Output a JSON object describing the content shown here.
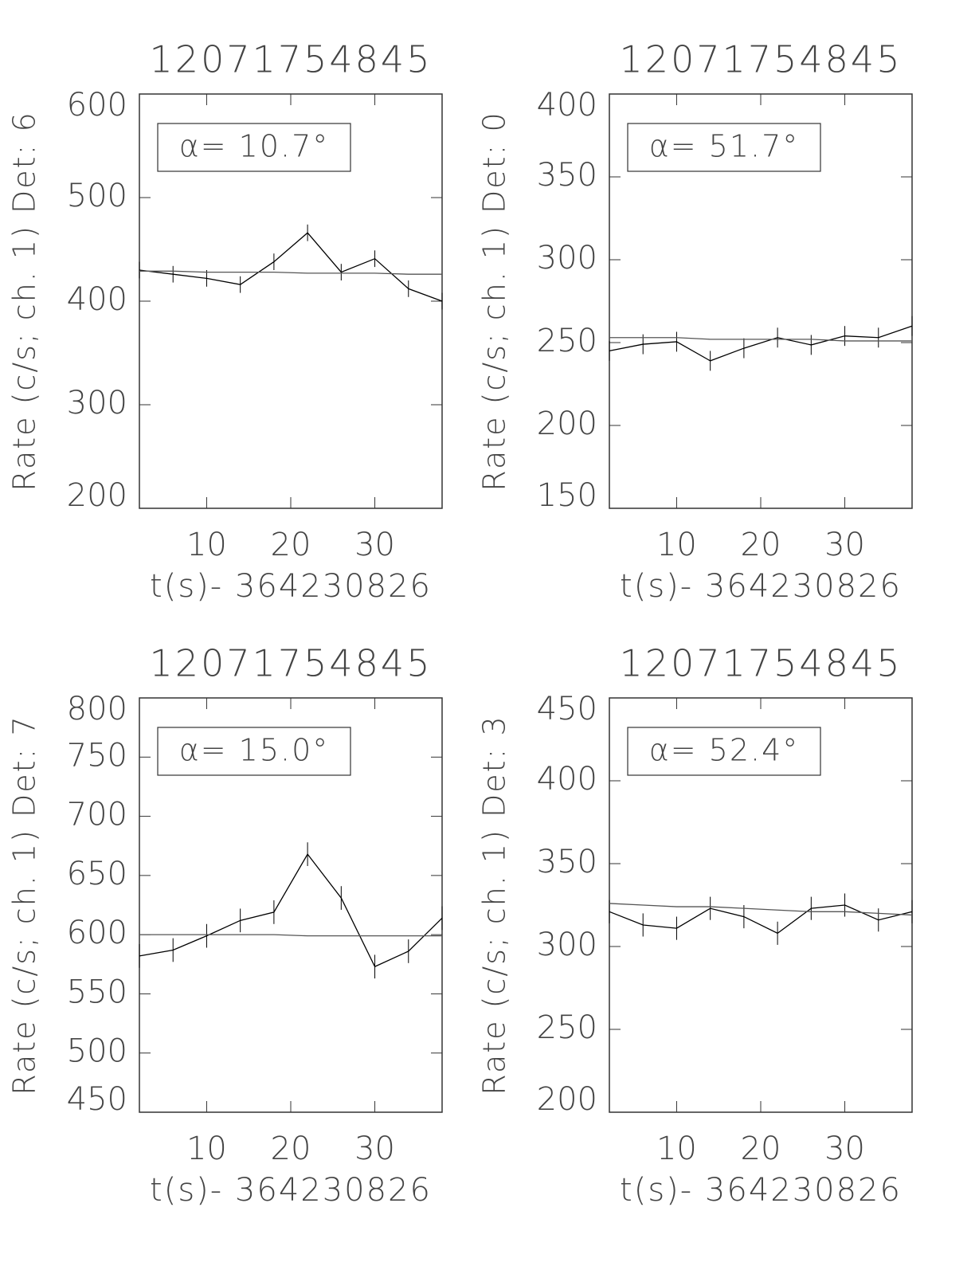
{
  "chart_data": [
    {
      "type": "line",
      "title": "12071754845",
      "xlabel": "t(s)- 364230826",
      "ylabel": "Rate (c/s; ch. 1) Det: 6",
      "annotation": "α= 10.7°",
      "x": [
        2,
        6,
        10,
        14,
        18,
        22,
        26,
        30,
        34,
        38
      ],
      "xlim": [
        2,
        38
      ],
      "xticks": [
        10,
        20,
        30
      ],
      "ylim": [
        200,
        600
      ],
      "yticks": [
        200,
        300,
        400,
        500,
        600
      ],
      "series": [
        {
          "color": "#000000",
          "values": [
            430,
            426,
            422,
            416,
            438,
            466,
            428,
            441,
            412,
            400
          ],
          "errors": [
            8,
            8,
            8,
            8,
            8,
            8,
            8,
            8,
            8,
            8
          ]
        },
        {
          "color": "#555555",
          "values": [
            429,
            429,
            428,
            428,
            428,
            427,
            427,
            427,
            426,
            426
          ]
        }
      ]
    },
    {
      "type": "line",
      "title": "12071754845",
      "xlabel": "t(s)- 364230826",
      "ylabel": "Rate (c/s; ch. 1) Det: 0",
      "annotation": "α= 51.7°",
      "x": [
        2,
        6,
        10,
        14,
        18,
        22,
        26,
        30,
        34,
        38
      ],
      "xlim": [
        2,
        38
      ],
      "xticks": [
        10,
        20,
        30
      ],
      "ylim": [
        150,
        400
      ],
      "yticks": [
        150,
        200,
        250,
        300,
        350,
        400
      ],
      "series": [
        {
          "color": "#000000",
          "values": [
            245,
            249,
            250.5,
            239,
            246.6,
            253,
            248.6,
            254,
            253,
            260
          ],
          "errors": [
            6,
            6,
            6,
            6,
            6,
            6,
            6,
            6,
            6,
            6
          ]
        },
        {
          "color": "#555555",
          "values": [
            253,
            253,
            253,
            252,
            252,
            252,
            252,
            251,
            251,
            251
          ]
        }
      ]
    },
    {
      "type": "line",
      "title": "12071754845",
      "xlabel": "t(s)- 364230826",
      "ylabel": "Rate (c/s; ch. 1) Det: 7",
      "annotation": "α= 15.0°",
      "x": [
        2,
        6,
        10,
        14,
        18,
        22,
        26,
        30,
        34,
        38
      ],
      "xlim": [
        2,
        38
      ],
      "xticks": [
        10,
        20,
        30
      ],
      "ylim": [
        450,
        800
      ],
      "yticks": [
        450,
        500,
        550,
        600,
        650,
        700,
        750,
        800
      ],
      "series": [
        {
          "color": "#000000",
          "values": [
            582,
            587,
            599,
            612,
            619,
            668,
            631,
            573,
            586,
            614
          ],
          "errors": [
            10,
            10,
            10,
            10,
            10,
            10,
            10,
            10,
            10,
            10
          ]
        },
        {
          "color": "#555555",
          "values": [
            600,
            600,
            600,
            600,
            600,
            599,
            599,
            599,
            599,
            599
          ]
        }
      ]
    },
    {
      "type": "line",
      "title": "12071754845",
      "xlabel": "t(s)- 364230826",
      "ylabel": "Rate (c/s; ch. 1) Det: 3",
      "annotation": "α= 52.4°",
      "x": [
        2,
        6,
        10,
        14,
        18,
        22,
        26,
        30,
        34,
        38
      ],
      "xlim": [
        2,
        38
      ],
      "xticks": [
        10,
        20,
        30
      ],
      "ylim": [
        200,
        450
      ],
      "yticks": [
        200,
        250,
        300,
        350,
        400,
        450
      ],
      "series": [
        {
          "color": "#000000",
          "values": [
            321,
            313,
            311,
            323,
            318,
            308,
            323,
            325,
            316,
            321
          ],
          "errors": [
            7,
            7,
            7,
            7,
            7,
            7,
            7,
            7,
            7,
            7
          ]
        },
        {
          "color": "#555555",
          "values": [
            326,
            325,
            324,
            324,
            323,
            322,
            321,
            321,
            320,
            319
          ]
        }
      ]
    }
  ]
}
